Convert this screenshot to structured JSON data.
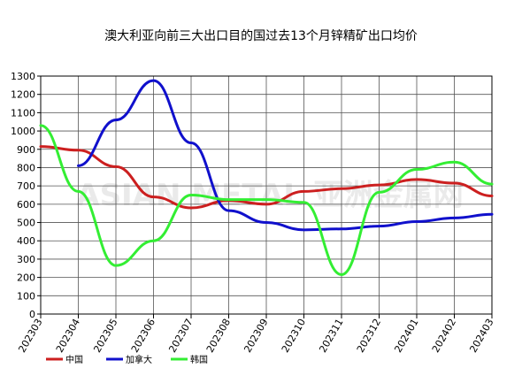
{
  "chart_data": {
    "type": "line",
    "title": "澳大利亚向前三大出口目的国过去13个月锌精矿出口均价",
    "xlabel": "",
    "ylabel": "",
    "categories": [
      "202303",
      "202304",
      "202305",
      "202306",
      "202307",
      "202308",
      "202309",
      "202310",
      "202311",
      "202312",
      "202401",
      "202402",
      "202403"
    ],
    "ylim": [
      0,
      1300
    ],
    "yticks": [
      0,
      100,
      200,
      300,
      400,
      500,
      600,
      700,
      800,
      900,
      1000,
      1100,
      1200,
      1300
    ],
    "grid": true,
    "legend_position": "bottom-left",
    "watermark": "ASIAN METAL 亚洲金属网",
    "series": [
      {
        "name": "中国",
        "color": "#cc1f1f",
        "values": [
          915,
          895,
          805,
          640,
          580,
          620,
          600,
          670,
          685,
          705,
          735,
          715,
          645
        ]
      },
      {
        "name": "加拿大",
        "color": "#1010cc",
        "values": [
          null,
          810,
          1060,
          1275,
          935,
          565,
          500,
          460,
          465,
          480,
          505,
          525,
          545
        ]
      },
      {
        "name": "韩国",
        "color": "#33ee33",
        "values": [
          1030,
          670,
          265,
          400,
          650,
          625,
          625,
          610,
          215,
          665,
          790,
          830,
          710
        ]
      }
    ]
  }
}
